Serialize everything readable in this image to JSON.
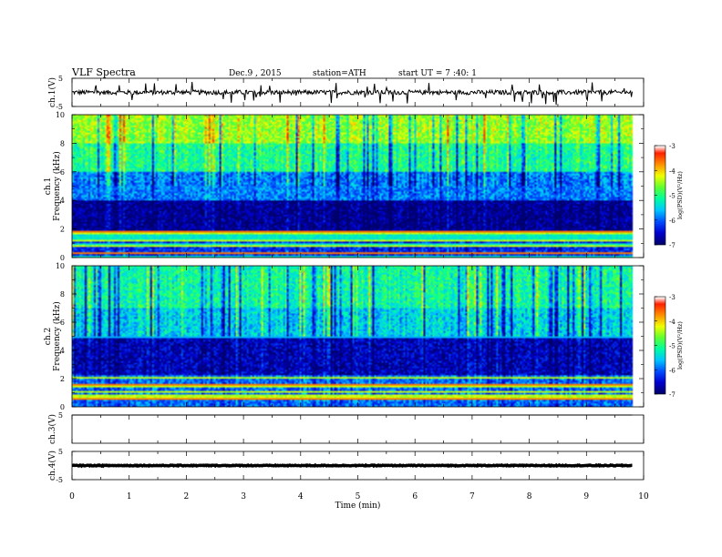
{
  "header": {
    "title": "VLF  Spectra",
    "date": "Dec.9  , 2015",
    "station": "station=ATH",
    "start": "start  UT  =   7 :40: 1"
  },
  "chart_data": [
    {
      "type": "line",
      "name": "ch.1 waveform",
      "ylabel": "ch.1(V)",
      "ylim": [
        -5,
        5
      ],
      "yticks": [
        "5",
        "-5"
      ],
      "x_range_min": [
        0,
        9.8
      ],
      "level": 0,
      "noise_amplitude": 0.8
    },
    {
      "type": "heatmap",
      "name": "ch.1 spectrogram",
      "ylabel": "ch.1\nFrequency  (kHz)",
      "ylim": [
        0,
        10
      ],
      "yticks": [
        "0",
        "2",
        "4",
        "6",
        "8",
        "10"
      ],
      "colorbar": {
        "label": "log(PSD)(V²/Hz)",
        "range": [
          -7,
          -3
        ],
        "ticks": [
          "-3",
          "-4",
          "-5",
          "-6",
          "-7"
        ]
      },
      "bands_khz": [
        {
          "from": 0,
          "to": 1.8,
          "logpsd": -6.2,
          "note": "striped lines"
        },
        {
          "from": 1.8,
          "to": 4.0,
          "logpsd": -6.8
        },
        {
          "from": 4.0,
          "to": 6.0,
          "logpsd": -5.8
        },
        {
          "from": 6.0,
          "to": 8.0,
          "logpsd": -4.9
        },
        {
          "from": 8.0,
          "to": 10.0,
          "logpsd": -4.3
        }
      ]
    },
    {
      "type": "heatmap",
      "name": "ch.2 spectrogram",
      "ylabel": "ch.2\nFrequency  (kHz)",
      "ylim": [
        0,
        10
      ],
      "yticks": [
        "0",
        "2",
        "4",
        "6",
        "8",
        "10"
      ],
      "colorbar": {
        "label": "log(PSD)(V²/Hz)",
        "range": [
          -7,
          -3
        ],
        "ticks": [
          "-3",
          "-4",
          "-5",
          "-6",
          "-7"
        ]
      },
      "bands_khz": [
        {
          "from": 0,
          "to": 2.2,
          "logpsd": -5.9,
          "note": "striped lines"
        },
        {
          "from": 2.2,
          "to": 5.0,
          "logpsd": -6.6
        },
        {
          "from": 5.0,
          "to": 7.0,
          "logpsd": -5.4
        },
        {
          "from": 7.0,
          "to": 10.0,
          "logpsd": -5.0
        }
      ]
    },
    {
      "type": "line",
      "name": "ch.3 waveform",
      "ylabel": "ch.3(V)",
      "ylim": [
        -5,
        5
      ],
      "yticks": [
        "5"
      ],
      "x_range_min": [
        0,
        9.8
      ],
      "level": 5,
      "noise_amplitude": 0
    },
    {
      "type": "line",
      "name": "ch.4 waveform",
      "ylabel": "ch.4(V)",
      "ylim": [
        -5,
        5
      ],
      "yticks": [
        "5",
        "-5"
      ],
      "x_range_min": [
        0,
        9.8
      ],
      "level": 0,
      "noise_amplitude": 0.15
    }
  ],
  "time_axis": {
    "xlabel": "Time  (min)",
    "xlim": [
      0,
      10
    ],
    "ticks": [
      "0",
      "1",
      "2",
      "3",
      "4",
      "5",
      "6",
      "7",
      "8",
      "9",
      "10"
    ]
  },
  "colors": {
    "colormap": [
      "#00006a",
      "#0000d0",
      "#0050ff",
      "#00c8ff",
      "#00ffa0",
      "#60ff30",
      "#f0ff00",
      "#ff9000",
      "#ff2000",
      "#ffffff"
    ]
  }
}
